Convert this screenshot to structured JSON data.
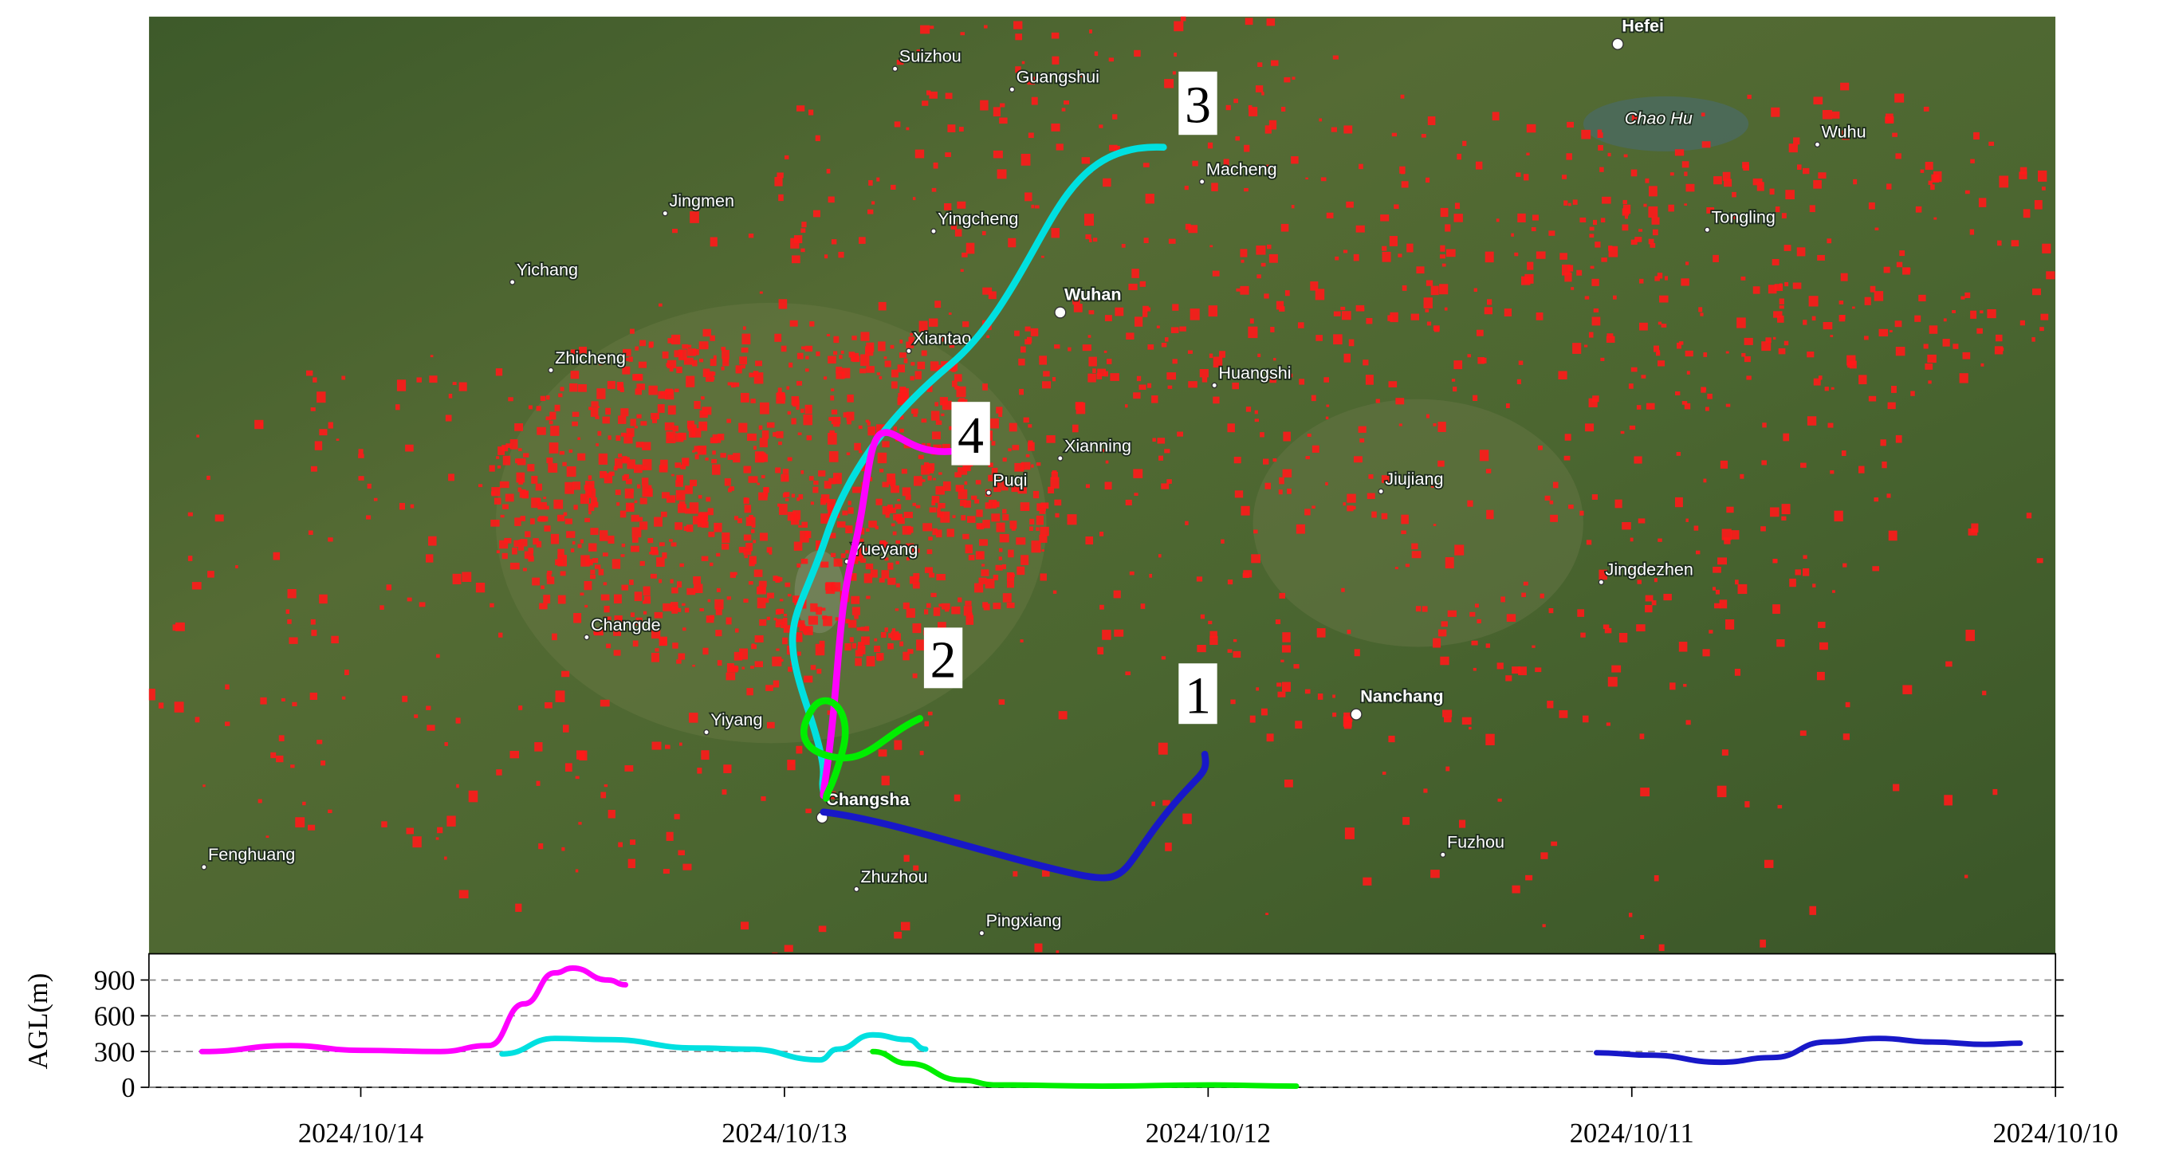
{
  "map": {
    "cities": [
      "Suizhou",
      "Guangshui",
      "Hefei",
      "Chao Hu",
      "Wuhu",
      "Macheng",
      "Jingmen",
      "Yingcheng",
      "Tongling",
      "Yichang",
      "Wuhan",
      "Xiantao",
      "Zhicheng",
      "Huangshi",
      "Xianning",
      "Puqi",
      "Jiujiang",
      "Yueyang",
      "Jingdezhen",
      "Changde",
      "Nanchang",
      "Yiyang",
      "Changsha",
      "Fenghuang",
      "Fuzhou",
      "Zhuzhou",
      "Pingxiang"
    ],
    "trajectory_labels": [
      "1",
      "2",
      "3",
      "4"
    ]
  },
  "chart_data": {
    "type": "line",
    "ylabel": "AGL(m)",
    "xlim": [
      "2024-10-14T12:00",
      "2024-10-10T00:00"
    ],
    "xticks": [
      {
        "value": "2024-10-14T00:00",
        "label": "2024/10/14"
      },
      {
        "value": "2024-10-13T00:00",
        "label": "2024/10/13"
      },
      {
        "value": "2024-10-12T00:00",
        "label": "2024/10/12"
      },
      {
        "value": "2024-10-11T00:00",
        "label": "2024/10/11"
      },
      {
        "value": "2024-10-10T00:00",
        "label": "2024/10/10"
      }
    ],
    "ylim": [
      0,
      1120
    ],
    "yticks": [
      0,
      300,
      600,
      900
    ],
    "grid": true,
    "series": [
      {
        "color": "#ff00ff",
        "x": [
          "2024-10-14T09:00",
          "2024-10-14T04:00",
          "2024-10-14T00:00",
          "2024-10-13T19:30",
          "2024-10-13T16:45",
          "2024-10-13T14:45",
          "2024-10-13T13:00",
          "2024-10-13T12:00",
          "2024-10-13T10:00",
          "2024-10-13T09:00"
        ],
        "values": [
          300,
          350,
          310,
          300,
          350,
          700,
          960,
          1000,
          900,
          860
        ]
      },
      {
        "color": "#00e0e0",
        "x": [
          "2024-10-13T16:00",
          "2024-10-13T13:00",
          "2024-10-13T10:00",
          "2024-10-13T05:00",
          "2024-10-13T02:00",
          "2024-10-12T22:00",
          "2024-10-12T21:00",
          "2024-10-12T19:00",
          "2024-10-12T17:00",
          "2024-10-12T16:00"
        ],
        "values": [
          280,
          410,
          400,
          330,
          320,
          230,
          320,
          440,
          400,
          320
        ]
      },
      {
        "color": "#00ee00",
        "x": [
          "2024-10-12T19:00",
          "2024-10-12T17:00",
          "2024-10-12T14:00",
          "2024-10-12T12:00",
          "2024-10-12T06:00",
          "2024-10-12T00:00",
          "2024-10-11T19:00"
        ],
        "values": [
          300,
          200,
          60,
          20,
          10,
          20,
          10
        ]
      },
      {
        "color": "#1818c8",
        "x": [
          "2024-10-11T02:00",
          "2024-10-10T23:00",
          "2024-10-10T19:00",
          "2024-10-10T16:00",
          "2024-10-10T13:00",
          "2024-10-10T10:00",
          "2024-10-10T07:00",
          "2024-10-10T04:00",
          "2024-10-10T02:00"
        ],
        "values": [
          290,
          270,
          210,
          250,
          380,
          410,
          380,
          360,
          370
        ]
      }
    ]
  }
}
